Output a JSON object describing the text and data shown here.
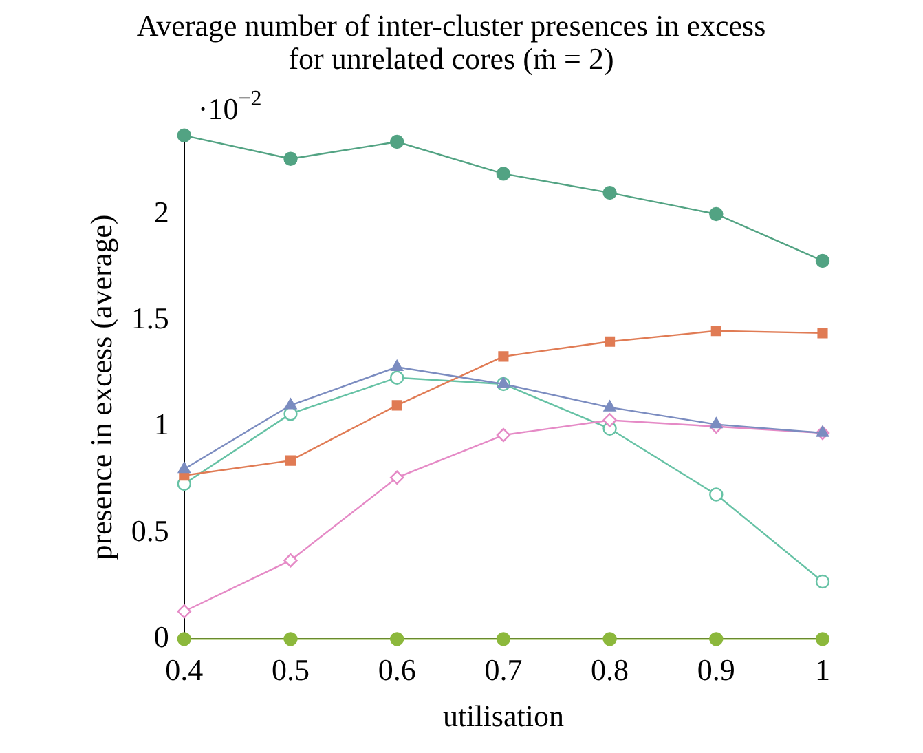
{
  "chart_data": {
    "type": "line",
    "title": "Average number of inter-cluster presences in excess\nfor unrelated cores (ṁ = 2)",
    "xlabel": "utilisation",
    "ylabel": "presence in excess (average)",
    "annotations": [
      "·10$^{−2}$"
    ],
    "x": [
      0.4,
      0.5,
      0.6,
      0.7,
      0.8,
      0.9,
      1
    ],
    "series": [
      {
        "color": "#52a383",
        "marker": "circle",
        "values": [
          2.37,
          2.26,
          2.34,
          2.19,
          2.1,
          2.0,
          1.78
        ]
      },
      {
        "color": "#7b8cc0",
        "marker": "triangle",
        "values": [
          0.8,
          1.1,
          1.28,
          1.2,
          1.09,
          1.01,
          0.97
        ]
      },
      {
        "color": "#e07b54",
        "marker": "square",
        "values": [
          0.77,
          0.84,
          1.1,
          1.33,
          1.4,
          1.45,
          1.44
        ]
      },
      {
        "color": "#e58ac6",
        "marker": "diamond",
        "values": [
          0.13,
          0.37,
          0.76,
          0.96,
          1.03,
          1.0,
          0.97
        ]
      },
      {
        "color": "#66c2a5",
        "marker": "circle",
        "values": [
          0.73,
          1.06,
          1.23,
          1.2,
          0.99,
          0.68,
          0.27
        ]
      },
      {
        "color": "#8cb83c",
        "marker": "circle",
        "values": [
          0,
          0,
          0,
          0,
          0,
          0,
          0
        ]
      }
    ],
    "xlim": [
      0.4,
      1
    ],
    "ylim": [
      0,
      2.37
    ],
    "xticks": [
      0.4,
      0.5,
      0.6,
      0.7,
      0.8,
      0.9,
      1
    ],
    "yticks": [
      0,
      0.5,
      1,
      1.5,
      2
    ],
    "grid": false,
    "legend": false
  }
}
